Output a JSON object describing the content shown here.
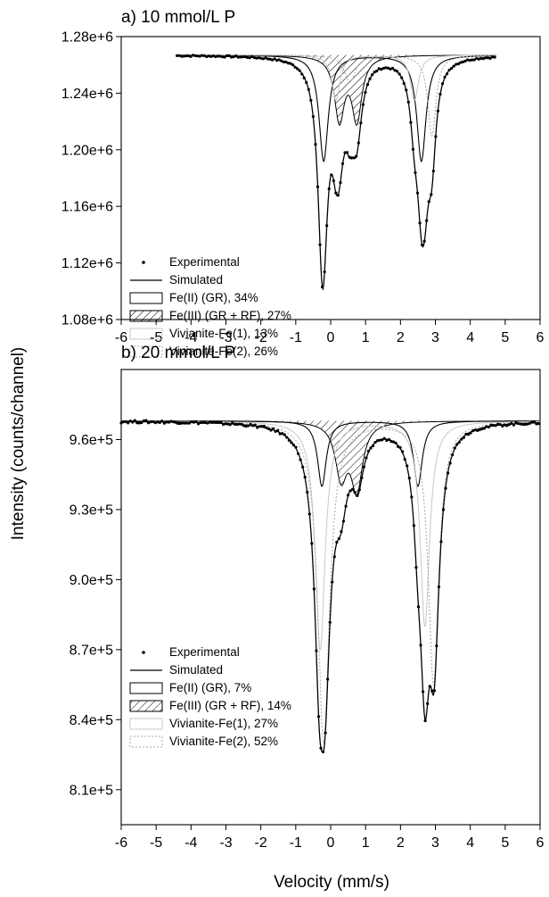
{
  "figure": {
    "ylabel": "Intensity (counts/channel)",
    "xlabel": "Velocity (mm/s)"
  },
  "colors": {
    "experimental": "#000000",
    "simulated": "#000000",
    "fe2": "#000000",
    "fe3_hatch": "#000000",
    "vivianite1": "#c8c8c8",
    "vivianite2": "#a8a8a8"
  },
  "chart_data": [
    {
      "type": "line",
      "title": "a) 10 mmol/L P",
      "xlim": [
        -6,
        6
      ],
      "ylim": [
        1080000,
        1280000
      ],
      "x_ticks": [
        "-6",
        "-5",
        "-4",
        "-3",
        "-2",
        "-1",
        "0",
        "1",
        "2",
        "3",
        "4",
        "5",
        "6"
      ],
      "y_ticks": [
        "1.08e+6",
        "1.12e+6",
        "1.16e+6",
        "1.20e+6",
        "1.24e+6",
        "1.28e+6"
      ],
      "baseline": 1267000,
      "x_range_data": [
        -4.4,
        4.75
      ],
      "series": [
        {
          "name": "Experimental",
          "kind": "points"
        },
        {
          "name": "Simulated",
          "kind": "line"
        },
        {
          "name": "Fe(II) (GR), 34%",
          "kind": "doublet",
          "peaks": [
            {
              "x": -0.2,
              "y": 1192000,
              "w": 0.32
            },
            {
              "x": 2.6,
              "y": 1192000,
              "w": 0.32
            }
          ]
        },
        {
          "name": "Fe(III) (GR + RF), 27%",
          "kind": "doublet-hatched",
          "peaks": [
            {
              "x": 0.25,
              "y": 1222000,
              "w": 0.34
            },
            {
              "x": 0.75,
              "y": 1222000,
              "w": 0.34
            }
          ]
        },
        {
          "name": "Vivianite-Fe(1), 13%",
          "kind": "doublet-light",
          "peaks": [
            {
              "x": 0.15,
              "y": 1235000,
              "w": 0.28
            },
            {
              "x": 2.4,
              "y": 1235000,
              "w": 0.28
            }
          ]
        },
        {
          "name": "Vivianite-Fe(2), 26%",
          "kind": "doublet-light2",
          "peaks": [
            {
              "x": 0.55,
              "y": 1248000,
              "w": 0.38
            },
            {
              "x": 2.9,
              "y": 1210000,
              "w": 0.28
            }
          ]
        }
      ],
      "experimental_minima": [
        {
          "x": -0.25,
          "y": 1106000
        },
        {
          "x": 0.55,
          "y": 1197000
        },
        {
          "x": 2.7,
          "y": 1138000
        }
      ]
    },
    {
      "type": "line",
      "title": "b) 20 mmol/L P",
      "xlim": [
        -6,
        6
      ],
      "ylim": [
        795000,
        990000
      ],
      "x_ticks": [
        "-6",
        "-5",
        "-4",
        "-3",
        "-2",
        "-1",
        "0",
        "1",
        "2",
        "3",
        "4",
        "5",
        "6"
      ],
      "y_ticks": [
        "8.1e+5",
        "8.4e+5",
        "8.7e+5",
        "9.0e+5",
        "9.3e+5",
        "9.6e+5"
      ],
      "baseline": 968000,
      "x_range_data": [
        -6,
        6
      ],
      "series": [
        {
          "name": "Experimental",
          "kind": "points"
        },
        {
          "name": "Simulated",
          "kind": "line"
        },
        {
          "name": "Fe(II) (GR), 7%",
          "kind": "doublet",
          "peaks": [
            {
              "x": -0.25,
              "y": 940000,
              "w": 0.3
            },
            {
              "x": 2.5,
              "y": 940000,
              "w": 0.3
            }
          ]
        },
        {
          "name": "Fe(III) (GR + RF), 14%",
          "kind": "doublet-hatched",
          "peaks": [
            {
              "x": 0.3,
              "y": 945000,
              "w": 0.4
            },
            {
              "x": 0.75,
              "y": 940000,
              "w": 0.4
            }
          ]
        },
        {
          "name": "Vivianite-Fe(1), 27%",
          "kind": "doublet-light",
          "peaks": [
            {
              "x": -0.3,
              "y": 870000,
              "w": 0.34
            },
            {
              "x": 2.7,
              "y": 880000,
              "w": 0.32
            }
          ]
        },
        {
          "name": "Vivianite-Fe(2), 52%",
          "kind": "doublet-light2",
          "peaks": [
            {
              "x": -0.2,
              "y": 830000,
              "w": 0.4
            },
            {
              "x": 2.95,
              "y": 855000,
              "w": 0.36
            }
          ]
        }
      ],
      "experimental_minima": [
        {
          "x": -0.25,
          "y": 826000
        },
        {
          "x": 0.7,
          "y": 934000
        },
        {
          "x": 2.9,
          "y": 852000
        }
      ]
    }
  ]
}
